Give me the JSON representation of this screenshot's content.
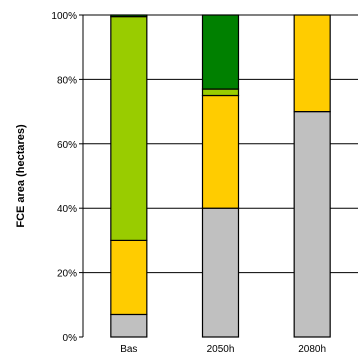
{
  "chart_data": {
    "type": "bar",
    "stacked": true,
    "percent": true,
    "categories": [
      "Bas",
      "2050h",
      "2080h"
    ],
    "ylabel": "FCE area (hectares)",
    "ylim": [
      0,
      100
    ],
    "yticks": [
      "0%",
      "20%",
      "40%",
      "60%",
      "80%",
      "100%"
    ],
    "grid": true,
    "series": [
      {
        "color": "#c0c0c0",
        "values": [
          7,
          40,
          70
        ]
      },
      {
        "color": "#ffcc00",
        "values": [
          23,
          35,
          30
        ]
      },
      {
        "color": "#99cc00",
        "values": [
          69.5,
          2,
          0
        ]
      },
      {
        "color": "#008000",
        "values": [
          0.5,
          23,
          0
        ]
      }
    ]
  }
}
